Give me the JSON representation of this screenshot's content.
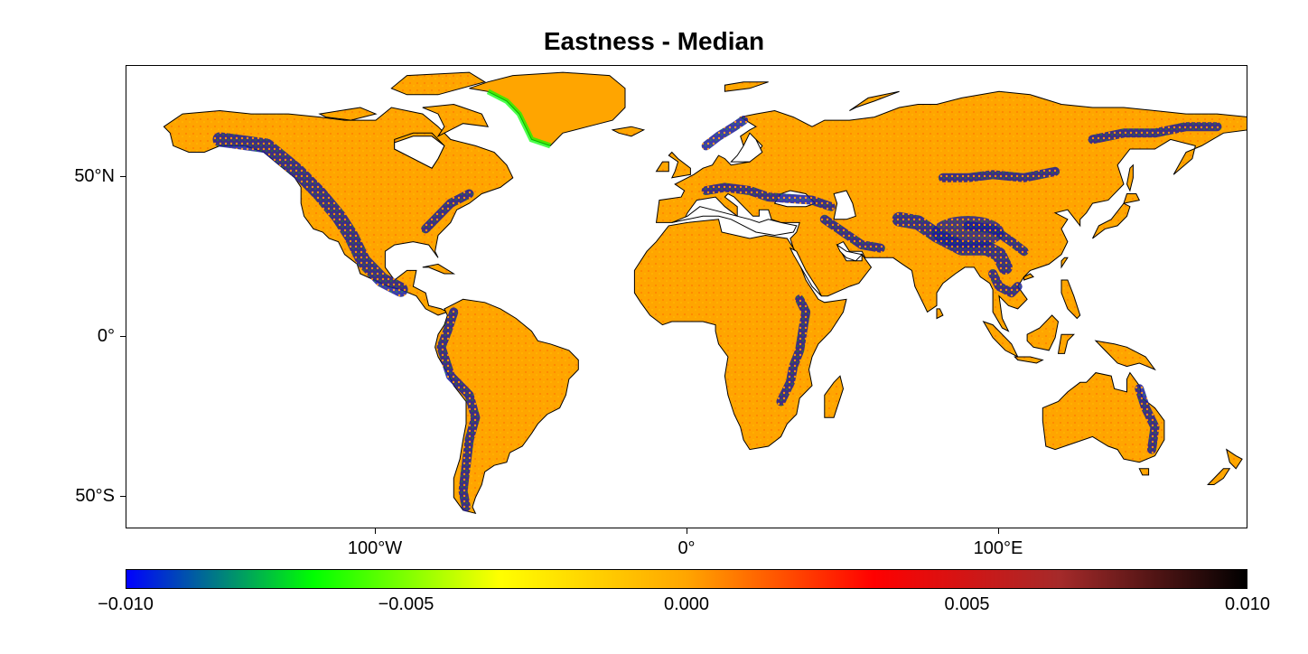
{
  "title": "Eastness - Median",
  "colors": {
    "scale": [
      "#0000ff",
      "#00ff00",
      "#ffff00",
      "#ffa500",
      "#ff0000",
      "#a52a2a",
      "#000000"
    ],
    "land_base": "#ffa500",
    "ocean": "#ffffff",
    "coastline": "#000000"
  },
  "map": {
    "projection": "equirectangular",
    "lon_range": [
      -180,
      180
    ],
    "lat_range": [
      -60,
      85
    ],
    "y_ticks": [
      {
        "lat": 50,
        "label": "50°N"
      },
      {
        "lat": 0,
        "label": "0°"
      },
      {
        "lat": -50,
        "label": "50°S"
      }
    ],
    "x_ticks": [
      {
        "lon": -100,
        "label": "100°W"
      },
      {
        "lon": 0,
        "label": "0°"
      },
      {
        "lon": 100,
        "label": "100°E"
      }
    ]
  },
  "colorbar": {
    "range": [
      -0.01,
      0.01
    ],
    "ticks": [
      {
        "value": -0.01,
        "label": "−0.010"
      },
      {
        "value": -0.005,
        "label": "−0.005"
      },
      {
        "value": 0.0,
        "label": "0.000"
      },
      {
        "value": 0.005,
        "label": "0.005"
      },
      {
        "value": 0.01,
        "label": "0.010"
      }
    ]
  }
}
